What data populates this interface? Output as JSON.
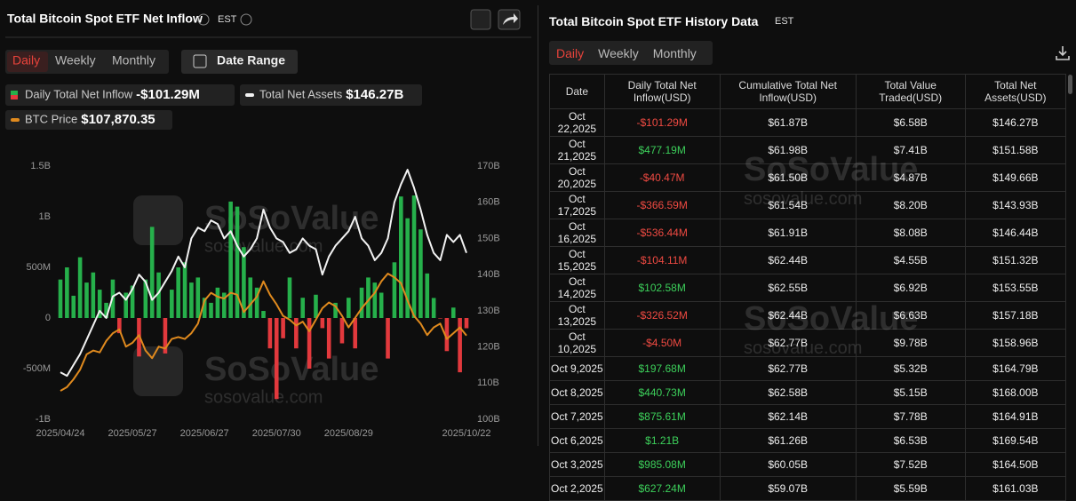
{
  "left_panel": {
    "title": "Total Bitcoin Spot ETF Net Inflow",
    "timezone": "EST",
    "tabs": [
      "Daily",
      "Weekly",
      "Monthly"
    ],
    "date_range": "Date Range"
  },
  "chart_data": {
    "type": "bar",
    "categories": [
      "2025/04/24",
      null,
      null,
      null,
      null,
      null,
      null,
      null,
      null,
      null,
      null,
      "2025/05/27",
      null,
      null,
      null,
      null,
      null,
      null,
      null,
      null,
      null,
      null,
      "2025/06/27",
      null,
      null,
      null,
      null,
      null,
      null,
      null,
      null,
      null,
      null,
      "2025/07/30",
      null,
      null,
      null,
      null,
      null,
      null,
      null,
      null,
      null,
      null,
      "2025/08/29",
      null,
      null,
      null,
      null,
      null,
      null,
      null,
      null,
      null,
      null,
      null,
      null,
      null,
      null,
      null,
      null,
      null,
      "2025/10/22"
    ],
    "series": [
      {
        "name": "Daily Total Net Inflow",
        "type": "bar",
        "color": "#26b04b",
        "negative_color": "#e2393d",
        "latest_label": "-$101.29M",
        "values": [
          380,
          500,
          220,
          600,
          350,
          450,
          280,
          150,
          380,
          -150,
          250,
          320,
          -380,
          380,
          900,
          450,
          -350,
          280,
          500,
          550,
          350,
          400,
          200,
          150,
          300,
          250,
          1150,
          1100,
          700,
          400,
          300,
          70,
          -300,
          -800,
          -200,
          400,
          -300,
          200,
          -500,
          230,
          -100,
          -400,
          150,
          -250,
          200,
          -300,
          300,
          400,
          350,
          250,
          -400,
          550,
          1200,
          985,
          1210,
          875,
          440,
          198,
          -5,
          -327,
          103,
          -536,
          -101
        ]
      },
      {
        "name": "Total Net Assets",
        "type": "line",
        "color": "#f2f2f2",
        "axis": "y2",
        "latest_label": "$146.27B",
        "values": [
          113,
          112,
          115,
          118,
          122,
          126,
          130,
          128,
          134,
          135,
          133,
          136,
          140,
          138,
          133,
          135,
          138,
          141,
          145,
          142,
          150,
          153,
          152,
          155,
          154,
          150,
          152,
          148,
          145,
          147,
          150,
          158,
          153,
          150,
          149,
          146,
          147,
          150,
          148,
          147,
          140,
          145,
          148,
          150,
          152,
          156,
          150,
          148,
          144,
          146,
          150,
          160,
          165,
          169,
          164,
          158,
          151,
          146,
          144,
          151,
          149,
          151,
          146
        ]
      },
      {
        "name": "BTC Price",
        "type": "line",
        "color": "#e08a1e",
        "latest_label": "$107,870.35",
        "values": [
          93500,
          94500,
          96500,
          99000,
          103000,
          104000,
          103500,
          106500,
          108500,
          109500,
          105000,
          106000,
          108000,
          104000,
          102000,
          105000,
          104500,
          107000,
          107500,
          107000,
          108500,
          111000,
          117000,
          119000,
          118000,
          117500,
          119000,
          118500,
          114000,
          116000,
          118000,
          122000,
          118500,
          116000,
          113000,
          112000,
          110500,
          111500,
          109000,
          112000,
          115000,
          116500,
          115500,
          113000,
          110000,
          112500,
          115000,
          117000,
          119000,
          122000,
          124000,
          123000,
          121500,
          117000,
          113000,
          111000,
          108000,
          110000,
          111000,
          107000,
          108500,
          110000,
          107870.35
        ]
      }
    ],
    "ylim": [
      -1000,
      1500
    ],
    "yticks": [
      {
        "value": -1000,
        "label": "-1B"
      },
      {
        "value": -500,
        "label": "-500M"
      },
      0,
      {
        "value": 500,
        "label": "500M"
      },
      {
        "value": 1000,
        "label": "1B"
      },
      {
        "value": 1500,
        "label": "1.5B"
      }
    ],
    "y2lim": [
      100,
      170
    ],
    "y2ticks": [
      {
        "value": 100,
        "label": "100B"
      },
      {
        "value": 110,
        "label": "110B"
      },
      {
        "value": 120,
        "label": "120B"
      },
      {
        "value": 130,
        "label": "130B"
      },
      {
        "value": 140,
        "label": "140B"
      },
      {
        "value": 150,
        "label": "150B"
      },
      {
        "value": 160,
        "label": "160B"
      },
      {
        "value": 170,
        "label": "170B"
      }
    ],
    "grid": false,
    "watermark": {
      "brand": "SoSoValue",
      "site": "sosovalue.com"
    }
  },
  "right_panel": {
    "title": "Total Bitcoin Spot ETF History Data",
    "timezone": "EST",
    "tabs": [
      "Daily",
      "Weekly",
      "Monthly"
    ],
    "table": {
      "columns": [
        "Date",
        "Daily Total Net Inflow(USD)",
        "Cumulative Total Net Inflow(USD)",
        "Total Value Traded(USD)",
        "Total Net Assets(USD)"
      ],
      "rows": [
        [
          "Oct 22,2025",
          "-$101.29M",
          "$61.87B",
          "$6.58B",
          "$146.27B"
        ],
        [
          "Oct 21,2025",
          "$477.19M",
          "$61.98B",
          "$7.41B",
          "$151.58B"
        ],
        [
          "Oct 20,2025",
          "-$40.47M",
          "$61.50B",
          "$4.87B",
          "$149.66B"
        ],
        [
          "Oct 17,2025",
          "-$366.59M",
          "$61.54B",
          "$8.20B",
          "$143.93B"
        ],
        [
          "Oct 16,2025",
          "-$536.44M",
          "$61.91B",
          "$8.08B",
          "$146.44B"
        ],
        [
          "Oct 15,2025",
          "-$104.11M",
          "$62.44B",
          "$4.55B",
          "$151.32B"
        ],
        [
          "Oct 14,2025",
          "$102.58M",
          "$62.55B",
          "$6.92B",
          "$153.55B"
        ],
        [
          "Oct 13,2025",
          "-$326.52M",
          "$62.44B",
          "$6.63B",
          "$157.18B"
        ],
        [
          "Oct 10,2025",
          "-$4.50M",
          "$62.77B",
          "$9.78B",
          "$158.96B"
        ],
        [
          "Oct 9,2025",
          "$197.68M",
          "$62.77B",
          "$5.32B",
          "$164.79B"
        ],
        [
          "Oct 8,2025",
          "$440.73M",
          "$62.58B",
          "$5.15B",
          "$168.00B"
        ],
        [
          "Oct 7,2025",
          "$875.61M",
          "$62.14B",
          "$7.78B",
          "$164.91B"
        ],
        [
          "Oct 6,2025",
          "$1.21B",
          "$61.26B",
          "$6.53B",
          "$169.54B"
        ],
        [
          "Oct 3,2025",
          "$985.08M",
          "$60.05B",
          "$7.52B",
          "$164.50B"
        ],
        [
          "Oct 2,2025",
          "$627.24M",
          "$59.07B",
          "$5.59B",
          "$161.03B"
        ]
      ]
    },
    "watermark": {
      "brand": "SoSoValue",
      "site": "sosovalue.com"
    }
  }
}
